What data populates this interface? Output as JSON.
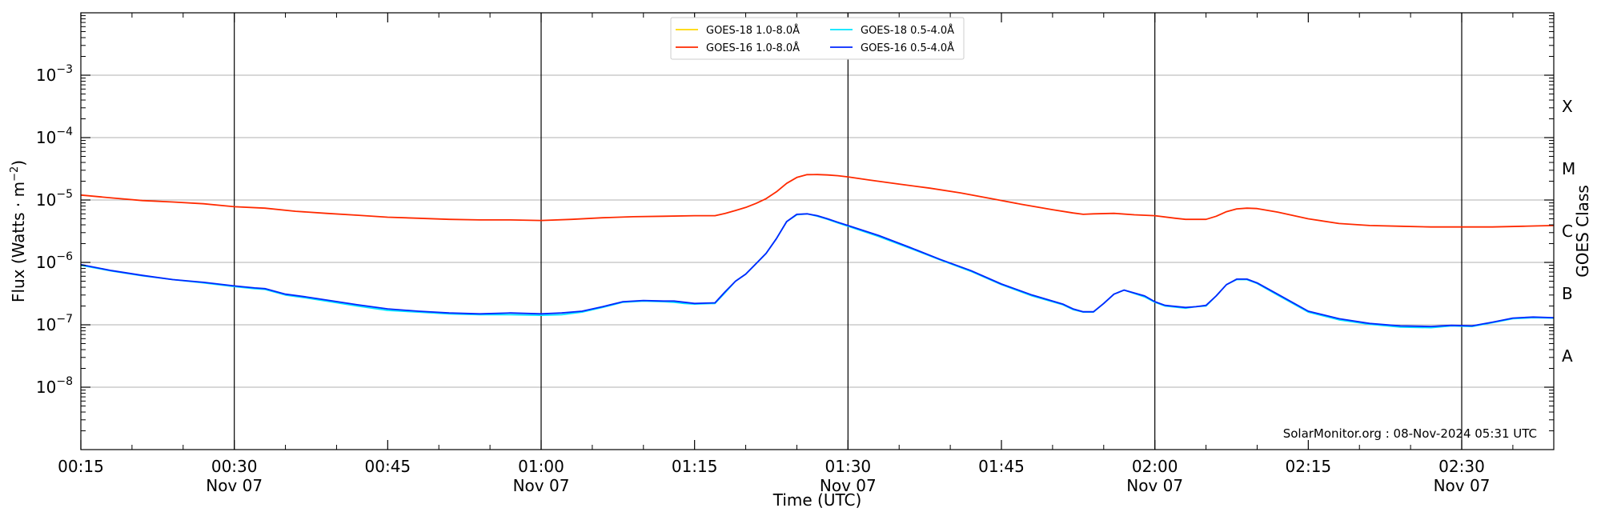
{
  "chart_data": {
    "type": "line",
    "xlabel": "Time (UTC)",
    "ylabel": "Flux (Watts · m$^{-2}$)",
    "ylabel_display": "Flux (Watts · m",
    "ylabel_sup": "−2",
    "ylabel_close": ")",
    "right_label": "GOES Class",
    "y_scale": "log",
    "ylim": [
      1e-09,
      0.01
    ],
    "xlim": [
      "00:15",
      "02:39"
    ],
    "x_ticks": [
      {
        "time": "00:15",
        "label": "00:15",
        "sub": ""
      },
      {
        "time": "00:30",
        "label": "00:30",
        "sub": "Nov 07"
      },
      {
        "time": "00:45",
        "label": "00:45",
        "sub": ""
      },
      {
        "time": "01:00",
        "label": "01:00",
        "sub": "Nov 07"
      },
      {
        "time": "01:15",
        "label": "01:15",
        "sub": ""
      },
      {
        "time": "01:30",
        "label": "01:30",
        "sub": "Nov 07"
      },
      {
        "time": "01:45",
        "label": "01:45",
        "sub": ""
      },
      {
        "time": "02:00",
        "label": "02:00",
        "sub": "Nov 07"
      },
      {
        "time": "02:15",
        "label": "02:15",
        "sub": ""
      },
      {
        "time": "02:30",
        "label": "02:30",
        "sub": "Nov 07"
      }
    ],
    "y_ticks": [
      {
        "exp": -8,
        "label_base": "10",
        "label_exp": "−8"
      },
      {
        "exp": -7,
        "label_base": "10",
        "label_exp": "−7"
      },
      {
        "exp": -6,
        "label_base": "10",
        "label_exp": "−6"
      },
      {
        "exp": -5,
        "label_base": "10",
        "label_exp": "−5"
      },
      {
        "exp": -4,
        "label_base": "10",
        "label_exp": "−4"
      },
      {
        "exp": -3,
        "label_base": "10",
        "label_exp": "−3"
      }
    ],
    "class_labels": [
      {
        "label": "A",
        "band": [
          -8,
          -7
        ]
      },
      {
        "label": "B",
        "band": [
          -7,
          -6
        ]
      },
      {
        "label": "C",
        "band": [
          -6,
          -5
        ]
      },
      {
        "label": "M",
        "band": [
          -5,
          -4
        ]
      },
      {
        "label": "X",
        "band": [
          -4,
          -3
        ]
      }
    ],
    "vertical_lines": [
      "00:30",
      "01:00",
      "01:30",
      "02:00",
      "02:30"
    ],
    "grid": "horizontal",
    "legend_position": "top-center",
    "watermark": "SolarMonitor.org : 08-Nov-2024 05:31 UTC",
    "series": [
      {
        "name": "GOES-18 1.0-8.0Å",
        "color": "#ffd700",
        "x": [],
        "values": []
      },
      {
        "name": "GOES-16 1.0-8.0Å",
        "color": "#ff2a00",
        "x": [
          "00:15",
          "00:18",
          "00:21",
          "00:24",
          "00:27",
          "00:30",
          "00:33",
          "00:36",
          "00:39",
          "00:42",
          "00:45",
          "00:48",
          "00:51",
          "00:54",
          "00:57",
          "01:00",
          "01:03",
          "01:06",
          "01:09",
          "01:12",
          "01:15",
          "01:17",
          "01:18",
          "01:19",
          "01:20",
          "01:21",
          "01:22",
          "01:23",
          "01:24",
          "01:25",
          "01:26",
          "01:27",
          "01:28",
          "01:29",
          "01:30",
          "01:32",
          "01:35",
          "01:38",
          "01:41",
          "01:44",
          "01:47",
          "01:50",
          "01:52",
          "01:53",
          "01:54",
          "01:56",
          "01:58",
          "02:00",
          "02:02",
          "02:03",
          "02:05",
          "02:06",
          "02:07",
          "02:08",
          "02:09",
          "02:10",
          "02:12",
          "02:15",
          "02:18",
          "02:21",
          "02:24",
          "02:27",
          "02:30",
          "02:33",
          "02:36",
          "02:39"
        ],
        "values": [
          1.2e-05,
          1.08e-05,
          9.8e-06,
          9.3e-06,
          8.7e-06,
          7.8e-06,
          7.4e-06,
          6.6e-06,
          6.1e-06,
          5.7e-06,
          5.3e-06,
          5.1e-06,
          4.9e-06,
          4.8e-06,
          4.8e-06,
          4.7e-06,
          4.9e-06,
          5.2e-06,
          5.4e-06,
          5.5e-06,
          5.6e-06,
          5.6e-06,
          6.1e-06,
          6.8e-06,
          7.6e-06,
          8.8e-06,
          1.05e-05,
          1.35e-05,
          1.85e-05,
          2.3e-05,
          2.55e-05,
          2.56e-05,
          2.52e-05,
          2.45e-05,
          2.35e-05,
          2.1e-05,
          1.8e-05,
          1.55e-05,
          1.3e-05,
          1.05e-05,
          8.5e-06,
          7e-06,
          6.2e-06,
          5.9e-06,
          6e-06,
          6.1e-06,
          5.8e-06,
          5.6e-06,
          5.1e-06,
          4.9e-06,
          4.9e-06,
          5.5e-06,
          6.5e-06,
          7.2e-06,
          7.4e-06,
          7.3e-06,
          6.4e-06,
          5e-06,
          4.2e-06,
          3.9e-06,
          3.8e-06,
          3.7e-06,
          3.7e-06,
          3.7e-06,
          3.8e-06,
          3.9e-06
        ]
      },
      {
        "name": "GOES-18 0.5-4.0Å",
        "color": "#00e5ff",
        "x": [
          "00:15",
          "00:18",
          "00:21",
          "00:24",
          "00:27",
          "00:30",
          "00:32",
          "00:33",
          "00:35",
          "00:37",
          "00:39",
          "00:42",
          "00:45",
          "00:48",
          "00:51",
          "00:54",
          "00:57",
          "01:00",
          "01:02",
          "01:04",
          "01:06",
          "01:08",
          "01:10",
          "01:12",
          "01:13",
          "01:14",
          "01:15",
          "01:17",
          "01:18",
          "01:19",
          "01:20",
          "01:21",
          "01:22",
          "01:23",
          "01:24",
          "01:25",
          "01:26",
          "01:27",
          "01:28",
          "01:29",
          "01:30",
          "01:33",
          "01:36",
          "01:39",
          "01:42",
          "01:45",
          "01:48",
          "01:51",
          "01:52",
          "01:53",
          "01:54",
          "01:55",
          "01:56",
          "01:57",
          "01:59",
          "02:00",
          "02:01",
          "02:03",
          "02:04",
          "02:05",
          "02:06",
          "02:07",
          "02:08",
          "02:09",
          "02:10",
          "02:12",
          "02:15",
          "02:18",
          "02:21",
          "02:24",
          "02:27",
          "02:29",
          "02:31",
          "02:33",
          "02:35",
          "02:37",
          "02:39"
        ],
        "values": [
          9e-07,
          7.3e-07,
          6.1e-07,
          5.3e-07,
          4.7e-07,
          4.1e-07,
          3.8e-07,
          3.7e-07,
          3e-07,
          2.7e-07,
          2.4e-07,
          2e-07,
          1.7e-07,
          1.6e-07,
          1.5e-07,
          1.45e-07,
          1.45e-07,
          1.42e-07,
          1.45e-07,
          1.6e-07,
          1.9e-07,
          2.3e-07,
          2.4e-07,
          2.35e-07,
          2.3e-07,
          2.2e-07,
          2.15e-07,
          2.2e-07,
          3.3e-07,
          5e-07,
          6.5e-07,
          9.5e-07,
          1.4e-06,
          2.4e-06,
          4.5e-06,
          5.8e-06,
          6e-06,
          5.5e-06,
          4.9e-06,
          4.3e-06,
          3.8e-06,
          2.6e-06,
          1.7e-06,
          1.1e-06,
          7.2e-07,
          4.4e-07,
          2.9e-07,
          2.1e-07,
          1.75e-07,
          1.6e-07,
          1.6e-07,
          2.2e-07,
          3.1e-07,
          3.6e-07,
          2.8e-07,
          2.3e-07,
          2e-07,
          1.85e-07,
          1.95e-07,
          2e-07,
          2.9e-07,
          4.4e-07,
          5.3e-07,
          5.3e-07,
          4.6e-07,
          3e-07,
          1.6e-07,
          1.2e-07,
          1.02e-07,
          9.2e-08,
          9e-08,
          9.6e-08,
          9.4e-08,
          1.08e-07,
          1.25e-07,
          1.3e-07,
          1.28e-07
        ]
      },
      {
        "name": "GOES-16 0.5-4.0Å",
        "color": "#0026ff",
        "x": [
          "00:15",
          "00:18",
          "00:21",
          "00:24",
          "00:27",
          "00:30",
          "00:32",
          "00:33",
          "00:35",
          "00:37",
          "00:39",
          "00:42",
          "00:45",
          "00:48",
          "00:51",
          "00:54",
          "00:57",
          "01:00",
          "01:02",
          "01:04",
          "01:06",
          "01:08",
          "01:10",
          "01:12",
          "01:13",
          "01:14",
          "01:15",
          "01:17",
          "01:18",
          "01:19",
          "01:20",
          "01:21",
          "01:22",
          "01:23",
          "01:24",
          "01:25",
          "01:26",
          "01:27",
          "01:28",
          "01:29",
          "01:30",
          "01:33",
          "01:36",
          "01:39",
          "01:42",
          "01:45",
          "01:48",
          "01:51",
          "01:52",
          "01:53",
          "01:54",
          "01:55",
          "01:56",
          "01:57",
          "01:59",
          "02:00",
          "02:01",
          "02:03",
          "02:04",
          "02:05",
          "02:06",
          "02:07",
          "02:08",
          "02:09",
          "02:10",
          "02:12",
          "02:15",
          "02:18",
          "02:21",
          "02:24",
          "02:27",
          "02:29",
          "02:31",
          "02:33",
          "02:35",
          "02:37",
          "02:39"
        ],
        "values": [
          9.2e-07,
          7.4e-07,
          6.2e-07,
          5.3e-07,
          4.8e-07,
          4.2e-07,
          3.9e-07,
          3.8e-07,
          3.1e-07,
          2.8e-07,
          2.5e-07,
          2.1e-07,
          1.8e-07,
          1.65e-07,
          1.55e-07,
          1.5e-07,
          1.55e-07,
          1.5e-07,
          1.55e-07,
          1.65e-07,
          1.95e-07,
          2.35e-07,
          2.45e-07,
          2.4e-07,
          2.4e-07,
          2.3e-07,
          2.2e-07,
          2.25e-07,
          3.4e-07,
          5e-07,
          6.5e-07,
          9.5e-07,
          1.4e-06,
          2.4e-06,
          4.5e-06,
          5.9e-06,
          6e-06,
          5.6e-06,
          5e-06,
          4.4e-06,
          3.9e-06,
          2.7e-06,
          1.75e-06,
          1.12e-06,
          7.4e-07,
          4.5e-07,
          3e-07,
          2.15e-07,
          1.8e-07,
          1.62e-07,
          1.62e-07,
          2.2e-07,
          3.1e-07,
          3.6e-07,
          2.9e-07,
          2.35e-07,
          2.05e-07,
          1.9e-07,
          1.95e-07,
          2.05e-07,
          2.9e-07,
          4.4e-07,
          5.4e-07,
          5.4e-07,
          4.7e-07,
          3.1e-07,
          1.65e-07,
          1.25e-07,
          1.05e-07,
          9.6e-08,
          9.4e-08,
          9.8e-08,
          9.6e-08,
          1.1e-07,
          1.28e-07,
          1.33e-07,
          1.3e-07
        ]
      }
    ]
  }
}
